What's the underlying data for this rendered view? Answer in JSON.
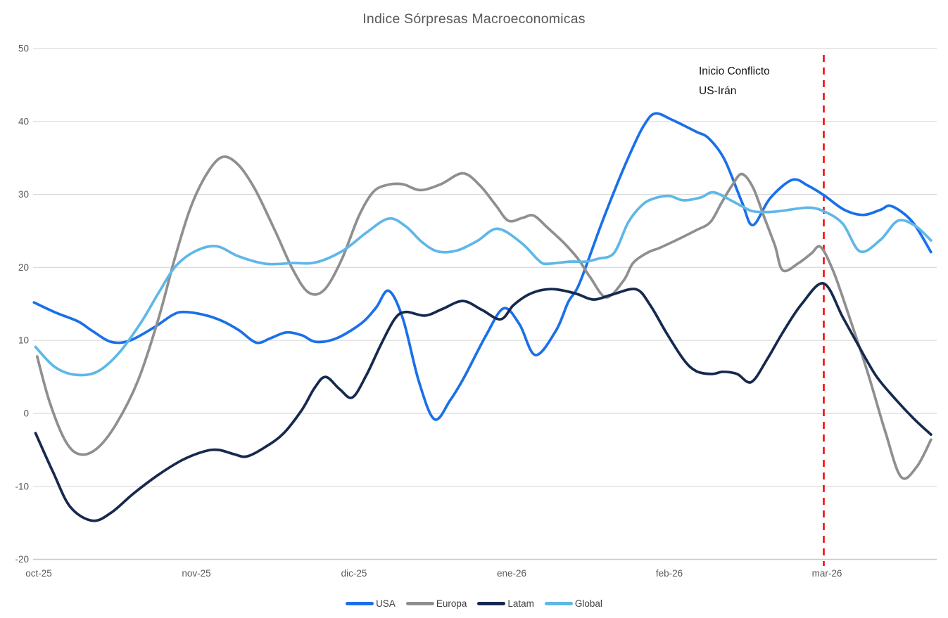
{
  "title": "Indice Sórpresas Macroeconomicas",
  "annotation": {
    "line1": "Inicio Conflicto",
    "line2": "US-Irán"
  },
  "event_line": {
    "label": "Inicio Conflicto US-Irán",
    "x_month": 4.98,
    "color": "#FB0000",
    "style": "dashed"
  },
  "colors": {
    "grid": "#DBDBDB",
    "axis_bottom": "#C9C9C9",
    "tick_text": "#595959",
    "legend_text": "#3F3F3F",
    "annotation_text": "#111111"
  },
  "chart_data": {
    "type": "line",
    "title": "Indice Sórpresas Macroeconomicas",
    "smoothed": true,
    "grid": "horizontal",
    "legend_position": "bottom",
    "x_axis": {
      "unit": "months since oct-25",
      "tick_labels": [
        "oct-25",
        "nov-25",
        "dic-25",
        "ene-26",
        "feb-26",
        "mar-26"
      ],
      "tick_months": [
        0,
        1,
        2,
        3,
        4,
        5
      ]
    },
    "y_axis": {
      "ticks": [
        50,
        40,
        30,
        20,
        10,
        0,
        -10,
        -20
      ],
      "min": -20,
      "max": 50
    },
    "series": [
      {
        "name": "USA",
        "color": "#1A70E8",
        "points": [
          [
            -0.03,
            15.2
          ],
          [
            0.11,
            13.8
          ],
          [
            0.25,
            12.6
          ],
          [
            0.34,
            11.3
          ],
          [
            0.46,
            9.8
          ],
          [
            0.58,
            10.0
          ],
          [
            0.74,
            11.9
          ],
          [
            0.85,
            13.5
          ],
          [
            0.92,
            13.9
          ],
          [
            1.05,
            13.5
          ],
          [
            1.16,
            12.7
          ],
          [
            1.27,
            11.4
          ],
          [
            1.38,
            9.7
          ],
          [
            1.47,
            10.3
          ],
          [
            1.57,
            11.1
          ],
          [
            1.67,
            10.7
          ],
          [
            1.76,
            9.8
          ],
          [
            1.89,
            10.3
          ],
          [
            2.05,
            12.4
          ],
          [
            2.14,
            14.5
          ],
          [
            2.22,
            16.8
          ],
          [
            2.31,
            13.0
          ],
          [
            2.41,
            4.5
          ],
          [
            2.51,
            -0.8
          ],
          [
            2.61,
            1.8
          ],
          [
            2.7,
            5.0
          ],
          [
            2.84,
            10.8
          ],
          [
            2.95,
            14.4
          ],
          [
            3.05,
            12.2
          ],
          [
            3.15,
            8.0
          ],
          [
            3.28,
            11.3
          ],
          [
            3.36,
            15.3
          ],
          [
            3.43,
            17.8
          ],
          [
            3.57,
            26.0
          ],
          [
            3.68,
            32.0
          ],
          [
            3.77,
            36.5
          ],
          [
            3.84,
            39.5
          ],
          [
            3.91,
            41.1
          ],
          [
            4.02,
            40.2
          ],
          [
            4.17,
            38.6
          ],
          [
            4.25,
            37.7
          ],
          [
            4.35,
            34.8
          ],
          [
            4.46,
            29.0
          ],
          [
            4.53,
            25.8
          ],
          [
            4.64,
            29.5
          ],
          [
            4.78,
            32.0
          ],
          [
            4.88,
            31.2
          ],
          [
            4.98,
            29.9
          ],
          [
            5.11,
            27.9
          ],
          [
            5.23,
            27.2
          ],
          [
            5.34,
            27.9
          ],
          [
            5.41,
            28.4
          ],
          [
            5.54,
            26.3
          ],
          [
            5.66,
            22.1
          ]
        ]
      },
      {
        "name": "Europa",
        "color": "#8F8F8F",
        "points": [
          [
            -0.01,
            7.8
          ],
          [
            0.07,
            1.5
          ],
          [
            0.17,
            -3.8
          ],
          [
            0.26,
            -5.6
          ],
          [
            0.37,
            -4.8
          ],
          [
            0.49,
            -1.5
          ],
          [
            0.63,
            4.5
          ],
          [
            0.76,
            13.0
          ],
          [
            0.86,
            21.0
          ],
          [
            0.96,
            28.0
          ],
          [
            1.06,
            32.6
          ],
          [
            1.16,
            35.1
          ],
          [
            1.26,
            34.2
          ],
          [
            1.37,
            30.8
          ],
          [
            1.5,
            25.0
          ],
          [
            1.61,
            19.8
          ],
          [
            1.71,
            16.6
          ],
          [
            1.81,
            16.9
          ],
          [
            1.92,
            21.0
          ],
          [
            2.03,
            27.0
          ],
          [
            2.12,
            30.3
          ],
          [
            2.21,
            31.3
          ],
          [
            2.31,
            31.4
          ],
          [
            2.42,
            30.6
          ],
          [
            2.55,
            31.4
          ],
          [
            2.69,
            32.9
          ],
          [
            2.8,
            31.2
          ],
          [
            2.9,
            28.5
          ],
          [
            2.98,
            26.4
          ],
          [
            3.07,
            26.8
          ],
          [
            3.14,
            27.1
          ],
          [
            3.23,
            25.4
          ],
          [
            3.33,
            23.4
          ],
          [
            3.42,
            21.2
          ],
          [
            3.5,
            18.6
          ],
          [
            3.6,
            15.9
          ],
          [
            3.71,
            18.2
          ],
          [
            3.77,
            20.6
          ],
          [
            3.86,
            22.0
          ],
          [
            3.94,
            22.7
          ],
          [
            4.05,
            23.8
          ],
          [
            4.17,
            25.1
          ],
          [
            4.26,
            26.2
          ],
          [
            4.33,
            28.8
          ],
          [
            4.4,
            31.3
          ],
          [
            4.46,
            32.8
          ],
          [
            4.53,
            31.0
          ],
          [
            4.6,
            27.0
          ],
          [
            4.67,
            23.0
          ],
          [
            4.72,
            19.6
          ],
          [
            4.82,
            20.6
          ],
          [
            4.9,
            21.9
          ],
          [
            4.96,
            22.8
          ],
          [
            5.04,
            19.5
          ],
          [
            5.13,
            14.0
          ],
          [
            5.26,
            5.5
          ],
          [
            5.37,
            -2.5
          ],
          [
            5.47,
            -8.7
          ],
          [
            5.57,
            -7.3
          ],
          [
            5.66,
            -3.6
          ]
        ]
      },
      {
        "name": "Latam",
        "color": "#16294E",
        "points": [
          [
            -0.02,
            -2.7
          ],
          [
            0.09,
            -8.0
          ],
          [
            0.2,
            -12.8
          ],
          [
            0.34,
            -14.7
          ],
          [
            0.46,
            -13.6
          ],
          [
            0.6,
            -11.0
          ],
          [
            0.76,
            -8.4
          ],
          [
            0.91,
            -6.4
          ],
          [
            1.05,
            -5.2
          ],
          [
            1.14,
            -5.0
          ],
          [
            1.24,
            -5.6
          ],
          [
            1.32,
            -5.9
          ],
          [
            1.43,
            -4.7
          ],
          [
            1.55,
            -2.8
          ],
          [
            1.67,
            0.5
          ],
          [
            1.75,
            3.5
          ],
          [
            1.82,
            5.0
          ],
          [
            1.91,
            3.3
          ],
          [
            1.99,
            2.2
          ],
          [
            2.08,
            5.3
          ],
          [
            2.17,
            9.4
          ],
          [
            2.26,
            13.0
          ],
          [
            2.33,
            13.9
          ],
          [
            2.45,
            13.4
          ],
          [
            2.56,
            14.3
          ],
          [
            2.69,
            15.4
          ],
          [
            2.81,
            14.2
          ],
          [
            2.93,
            12.9
          ],
          [
            3.01,
            14.8
          ],
          [
            3.1,
            16.2
          ],
          [
            3.19,
            16.9
          ],
          [
            3.28,
            17.0
          ],
          [
            3.41,
            16.4
          ],
          [
            3.52,
            15.6
          ],
          [
            3.64,
            16.3
          ],
          [
            3.79,
            17.0
          ],
          [
            3.88,
            14.8
          ],
          [
            3.98,
            11.1
          ],
          [
            4.09,
            7.4
          ],
          [
            4.17,
            5.8
          ],
          [
            4.27,
            5.4
          ],
          [
            4.34,
            5.7
          ],
          [
            4.43,
            5.4
          ],
          [
            4.52,
            4.3
          ],
          [
            4.62,
            7.4
          ],
          [
            4.72,
            11.1
          ],
          [
            4.84,
            15.0
          ],
          [
            4.98,
            17.8
          ],
          [
            5.1,
            13.2
          ],
          [
            5.2,
            9.3
          ],
          [
            5.31,
            5.2
          ],
          [
            5.42,
            2.3
          ],
          [
            5.55,
            -0.7
          ],
          [
            5.66,
            -2.9
          ]
        ]
      },
      {
        "name": "Global",
        "color": "#5FB7E8",
        "points": [
          [
            -0.02,
            9.1
          ],
          [
            0.1,
            6.4
          ],
          [
            0.23,
            5.3
          ],
          [
            0.37,
            5.7
          ],
          [
            0.51,
            8.3
          ],
          [
            0.65,
            12.5
          ],
          [
            0.76,
            16.5
          ],
          [
            0.87,
            20.2
          ],
          [
            1.0,
            22.3
          ],
          [
            1.13,
            22.9
          ],
          [
            1.27,
            21.5
          ],
          [
            1.44,
            20.5
          ],
          [
            1.61,
            20.6
          ],
          [
            1.76,
            20.7
          ],
          [
            1.93,
            22.3
          ],
          [
            2.08,
            24.8
          ],
          [
            2.22,
            26.7
          ],
          [
            2.33,
            25.6
          ],
          [
            2.43,
            23.5
          ],
          [
            2.53,
            22.2
          ],
          [
            2.65,
            22.3
          ],
          [
            2.78,
            23.6
          ],
          [
            2.91,
            25.3
          ],
          [
            3.06,
            23.4
          ],
          [
            3.17,
            21.0
          ],
          [
            3.22,
            20.5
          ],
          [
            3.37,
            20.8
          ],
          [
            3.47,
            20.8
          ],
          [
            3.55,
            21.2
          ],
          [
            3.65,
            22.0
          ],
          [
            3.74,
            26.2
          ],
          [
            3.83,
            28.6
          ],
          [
            3.91,
            29.5
          ],
          [
            4.0,
            29.8
          ],
          [
            4.09,
            29.2
          ],
          [
            4.2,
            29.6
          ],
          [
            4.28,
            30.3
          ],
          [
            4.39,
            29.2
          ],
          [
            4.46,
            28.4
          ],
          [
            4.53,
            27.7
          ],
          [
            4.64,
            27.6
          ],
          [
            4.73,
            27.8
          ],
          [
            4.88,
            28.2
          ],
          [
            4.98,
            27.7
          ],
          [
            5.1,
            26.0
          ],
          [
            5.21,
            22.2
          ],
          [
            5.34,
            23.8
          ],
          [
            5.45,
            26.4
          ],
          [
            5.56,
            25.7
          ],
          [
            5.66,
            23.7
          ]
        ]
      }
    ]
  }
}
